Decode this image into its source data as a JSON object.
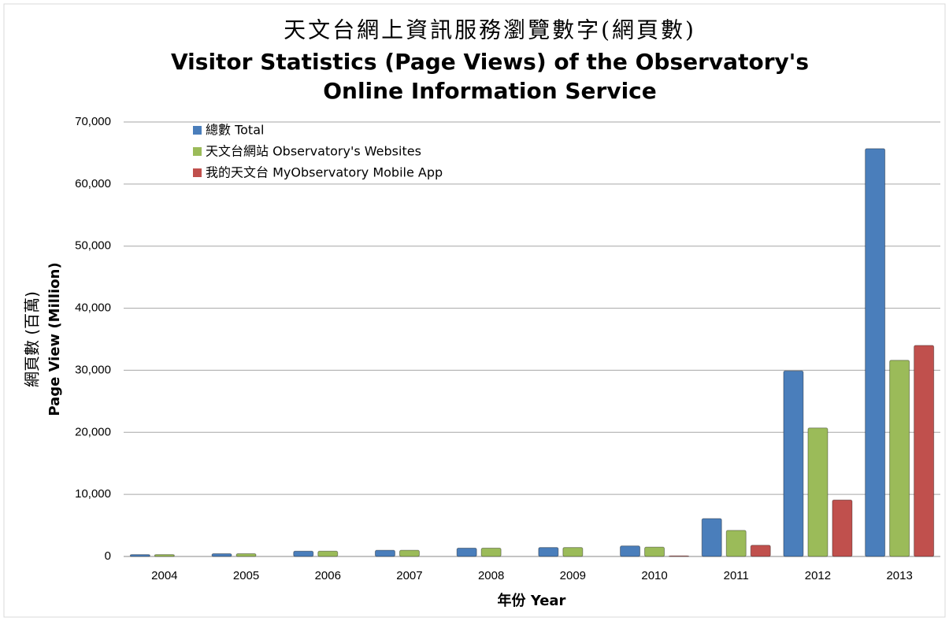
{
  "chart_data": {
    "type": "bar",
    "title": [
      "天文台網上資訊服務瀏覽數字(網頁數)",
      "Visitor Statistics (Page Views) of the Observatory's",
      "Online Information Service"
    ],
    "y_label": [
      "網頁數 (百萬)",
      "Page View (Million)"
    ],
    "x_label": "年份 Year",
    "categories": [
      "2004",
      "2005",
      "2006",
      "2007",
      "2008",
      "2009",
      "2010",
      "2011",
      "2012",
      "2013"
    ],
    "series": [
      {
        "name": "總數 Total",
        "color": "#4a7ebb",
        "values": [
          300,
          450,
          850,
          1000,
          1350,
          1450,
          1700,
          6100,
          29900,
          65700
        ]
      },
      {
        "name": "天文台網站 Observatory's Websites",
        "color": "#9bbb59",
        "values": [
          300,
          450,
          850,
          1000,
          1350,
          1450,
          1500,
          4200,
          20700,
          31600
        ]
      },
      {
        "name": "我的天文台 MyObservatory Mobile App",
        "color": "#c0504d",
        "values": [
          null,
          null,
          null,
          null,
          null,
          null,
          100,
          1800,
          9100,
          34000
        ]
      }
    ],
    "ylim": [
      0,
      70000
    ],
    "yticks": [
      0,
      {
        "value": 10000,
        "label": "10,000"
      },
      {
        "value": 20000,
        "label": "20,000"
      },
      {
        "value": 30000,
        "label": "30,000"
      },
      {
        "value": 40000,
        "label": "40,000"
      },
      {
        "value": 50000,
        "label": "50,000"
      },
      {
        "value": 60000,
        "label": "60,000"
      },
      {
        "value": 70000,
        "label": "70,000"
      }
    ],
    "grid": true,
    "legend": "top-left"
  }
}
